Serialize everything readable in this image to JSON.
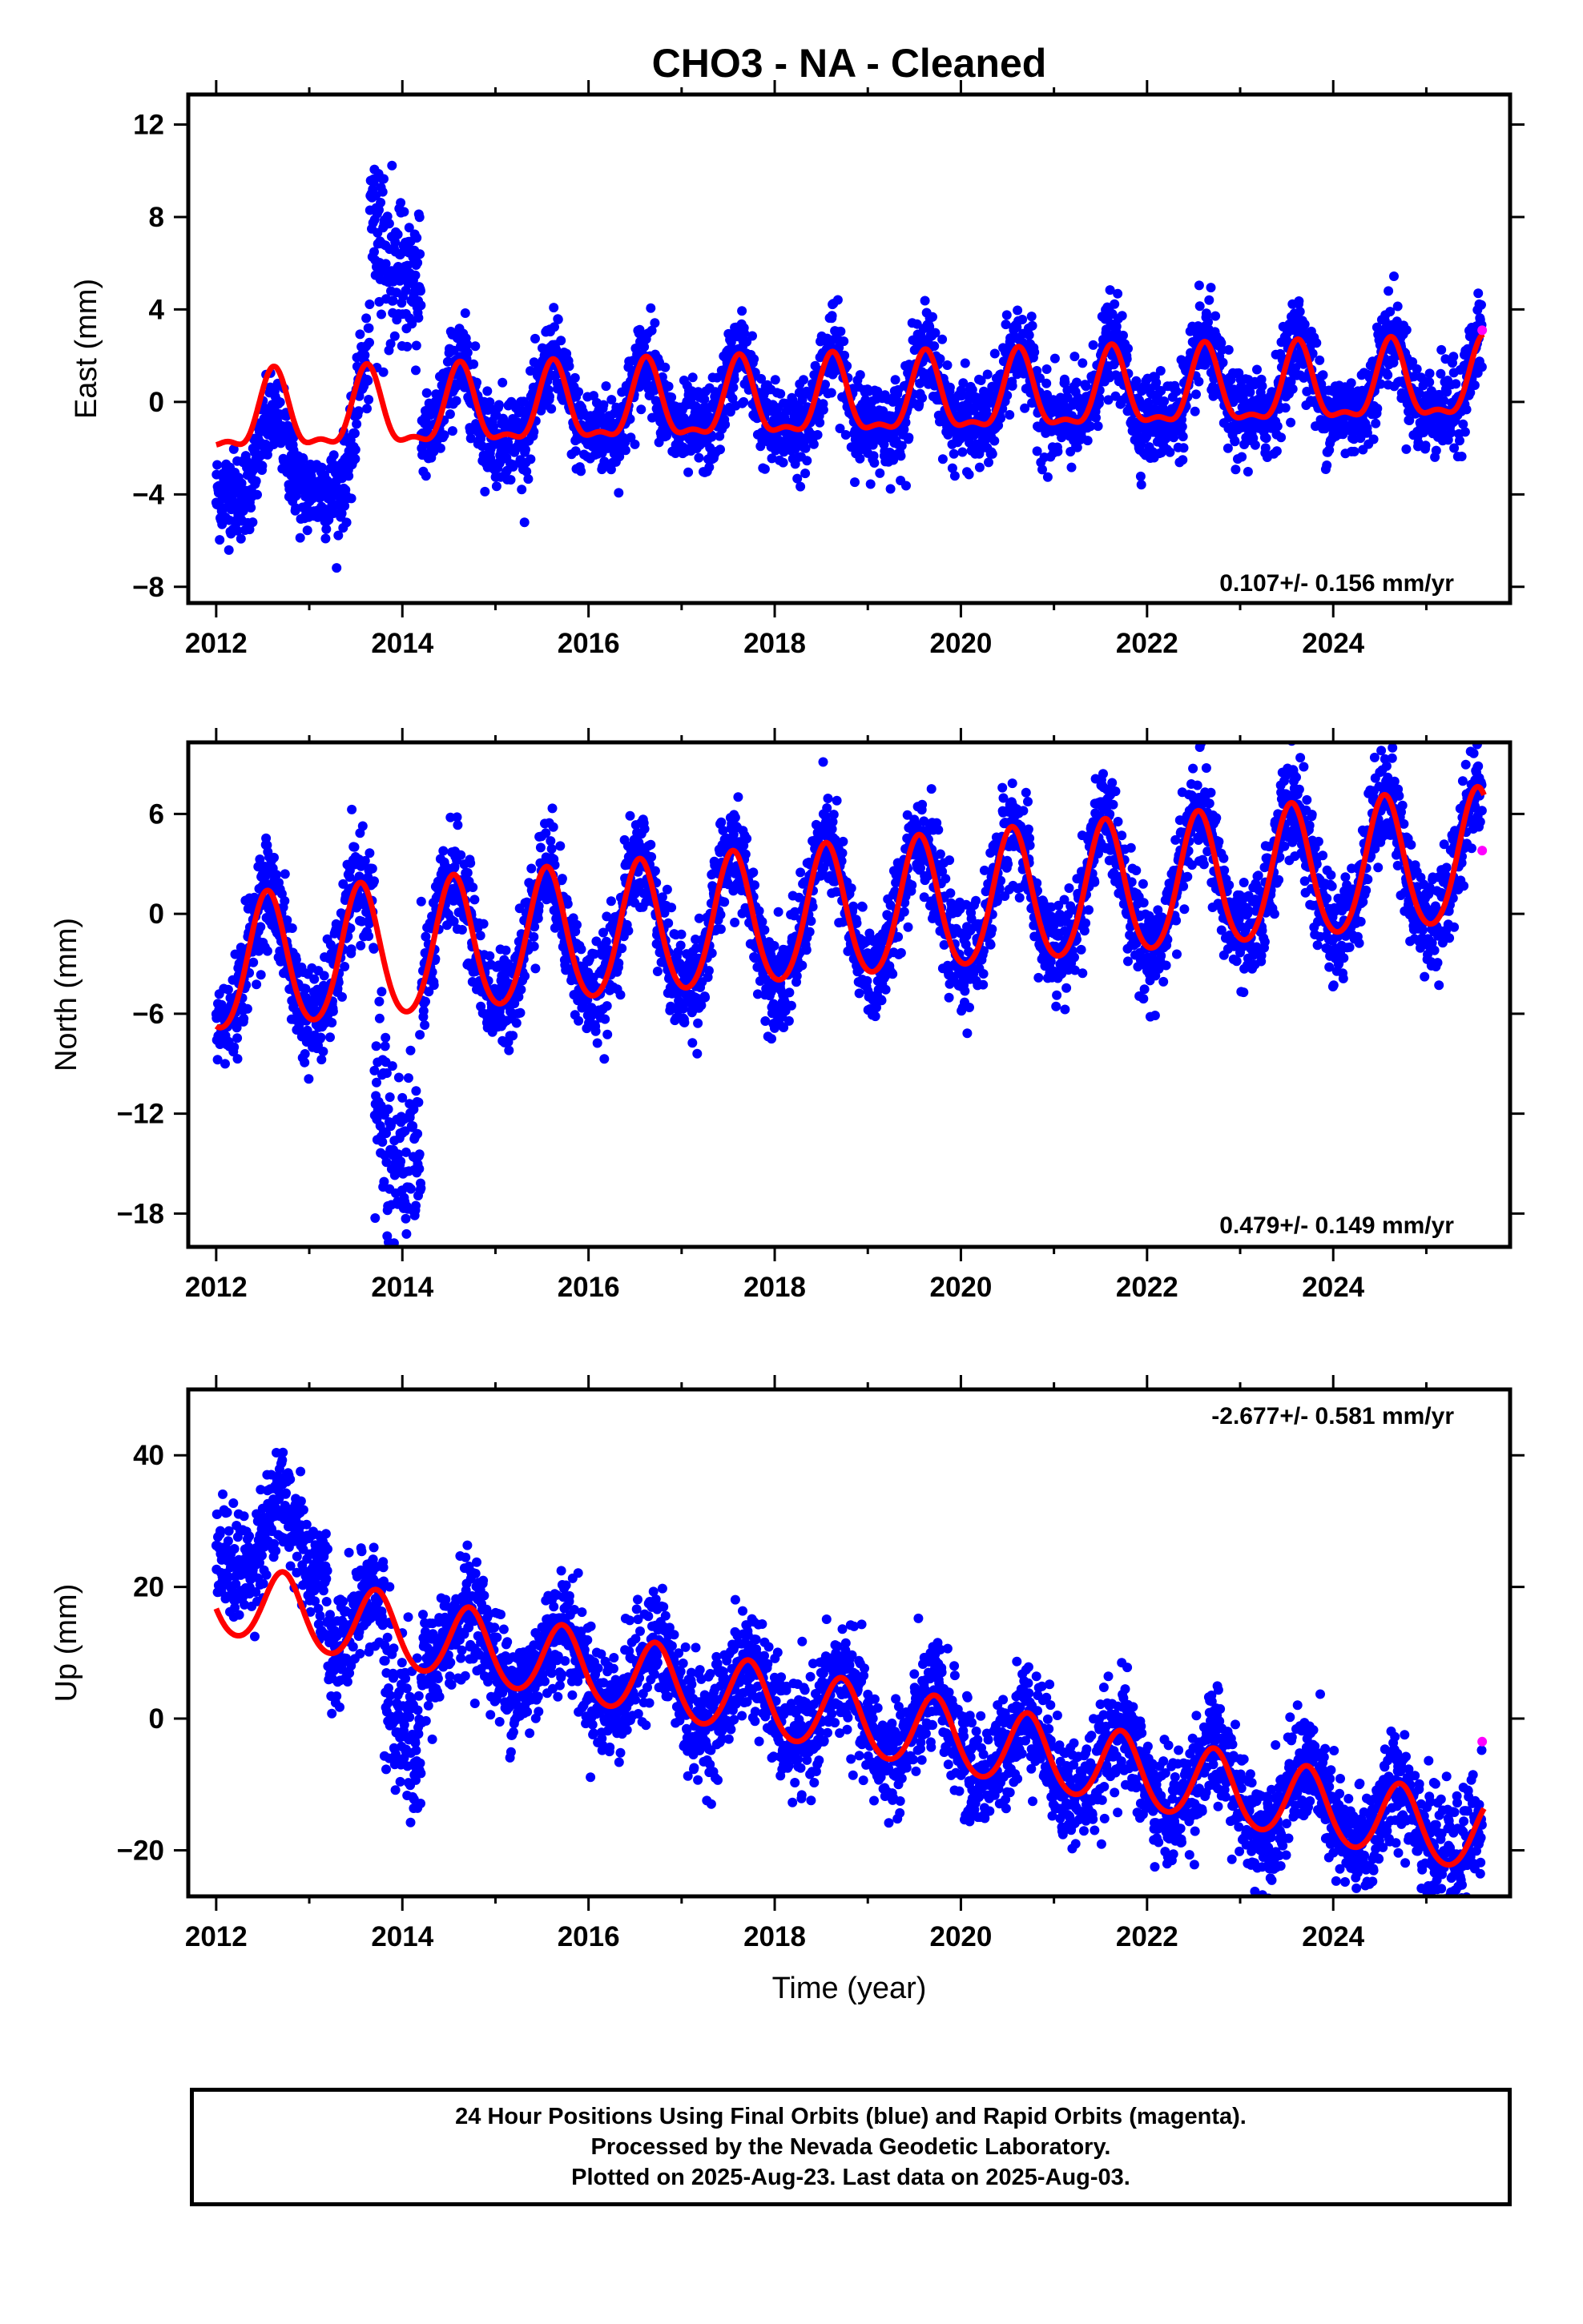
{
  "chart_data": [
    {
      "type": "scatter",
      "title": "CHO3  - NA - Cleaned",
      "ylabel": "East (mm)",
      "xlabel": "",
      "xlim": [
        2011.7,
        2025.9
      ],
      "ylim": [
        -8.7,
        13.3
      ],
      "xticks": [
        "2012",
        "2014",
        "2016",
        "2018",
        "2020",
        "2022",
        "2024"
      ],
      "yticks": [
        "12",
        "8",
        "4",
        "0",
        "−4",
        "−8"
      ],
      "rate_label": "0.107+/- 0.156 mm/yr",
      "series": [
        {
          "color": "#0000ff",
          "kind": "points",
          "data_start": 2012.0,
          "data_end": 2025.6
        },
        {
          "color": "#ff0000",
          "kind": "fit",
          "model": {
            "trend_mm_per_yr": 0.107,
            "annual_amp": 1.6,
            "annual_phase": 0.62,
            "semiannual_amp": 0.6
          }
        },
        {
          "color": "#ff00ff",
          "kind": "rapid",
          "x": [
            2025.6
          ],
          "y": [
            3.1
          ]
        }
      ]
    },
    {
      "type": "scatter",
      "title": "",
      "ylabel": "North (mm)",
      "xlabel": "",
      "xlim": [
        2011.7,
        2025.9
      ],
      "ylim": [
        -20.0,
        10.3
      ],
      "xticks": [
        "2012",
        "2014",
        "2016",
        "2018",
        "2020",
        "2022",
        "2024"
      ],
      "yticks": [
        "6",
        "0",
        "−6",
        "−12",
        "−18"
      ],
      "rate_label": "0.479+/- 0.149 mm/yr",
      "series": [
        {
          "color": "#0000ff",
          "kind": "points",
          "data_start": 2012.0,
          "data_end": 2025.6
        },
        {
          "color": "#ff0000",
          "kind": "fit",
          "model": {
            "trend_mm_per_yr": 0.479,
            "annual_amp": 4.0,
            "annual_phase": 0.55,
            "semiannual_amp": 0.4
          }
        },
        {
          "color": "#ff00ff",
          "kind": "rapid",
          "x": [
            2025.6
          ],
          "y": [
            3.8
          ]
        }
      ]
    },
    {
      "type": "scatter",
      "title": "",
      "ylabel": "Up (mm)",
      "xlabel": "Time (year)",
      "xlim": [
        2011.7,
        2025.9
      ],
      "ylim": [
        -27.0,
        50.0
      ],
      "xticks": [
        "2012",
        "2014",
        "2016",
        "2018",
        "2020",
        "2022",
        "2024"
      ],
      "yticks": [
        "40",
        "20",
        "0",
        "−20"
      ],
      "rate_label": "-2.677+/- 0.581 mm/yr",
      "series": [
        {
          "color": "#0000ff",
          "kind": "points",
          "data_start": 2012.0,
          "data_end": 2025.6
        },
        {
          "color": "#ff0000",
          "kind": "fit",
          "model": {
            "trend_mm_per_yr": -2.677,
            "annual_amp": 5.5,
            "annual_phase": 0.72,
            "semiannual_amp": 0.5
          }
        },
        {
          "color": "#ff00ff",
          "kind": "rapid",
          "x": [
            2025.6
          ],
          "y": [
            -3.5
          ]
        }
      ]
    }
  ],
  "caption": {
    "line1": "24 Hour Positions Using Final Orbits (blue) and Rapid Orbits (magenta).",
    "line2": "Processed by the Nevada Geodetic Laboratory.",
    "line3": "Plotted on 2025-Aug-23. Last data on 2025-Aug-03."
  }
}
